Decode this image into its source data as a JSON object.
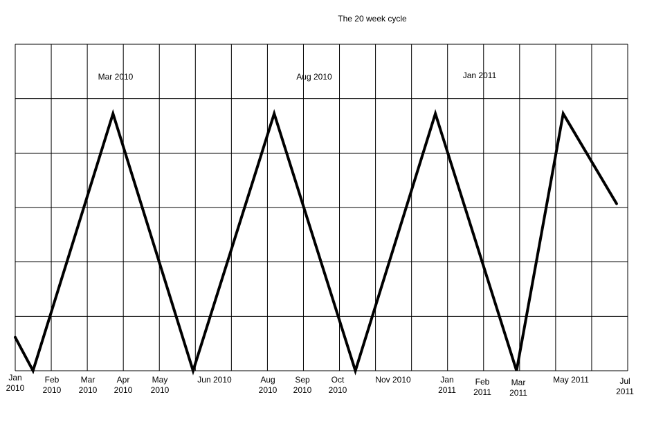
{
  "chart_data": {
    "type": "line",
    "title": "The 20 week cycle",
    "xlabel": "",
    "ylabel": "",
    "grid": true,
    "legend": "none",
    "tick_labels": [
      [
        "Jan",
        "2010"
      ],
      [
        "Feb",
        "2010"
      ],
      [
        "Mar",
        "2010"
      ],
      [
        "Apr",
        "2010"
      ],
      [
        "May",
        "2010"
      ],
      [
        "Jun 2010"
      ],
      [
        "Aug",
        "2010"
      ],
      [
        "Sep",
        "2010"
      ],
      [
        "Oct",
        "2010"
      ],
      [
        "Nov 2010"
      ],
      [
        "Jan",
        "2011"
      ],
      [
        "Feb",
        "2011"
      ],
      [
        "Mar",
        "2011"
      ],
      [
        "May 2011"
      ],
      [
        "Jul",
        "2011"
      ]
    ],
    "annotations": [
      "Mar 2010",
      "Aug 2010",
      "Jan 2011"
    ],
    "series": [
      {
        "x": [
          "2009-12-31",
          "2010-01-16",
          "2010-03-29",
          "2010-06-09",
          "2010-08-21",
          "2010-11-02",
          "2011-01-13",
          "2011-03-27",
          "2011-05-08",
          "2011-06-25"
        ],
        "y": [
          0.13,
          0.0,
          1.0,
          0.0,
          1.0,
          0.0,
          1.0,
          0.0,
          1.0,
          0.65
        ]
      }
    ],
    "xlim": [
      "2009-12-31",
      "2011-07-05"
    ],
    "ylim": [
      0,
      1.27
    ]
  }
}
